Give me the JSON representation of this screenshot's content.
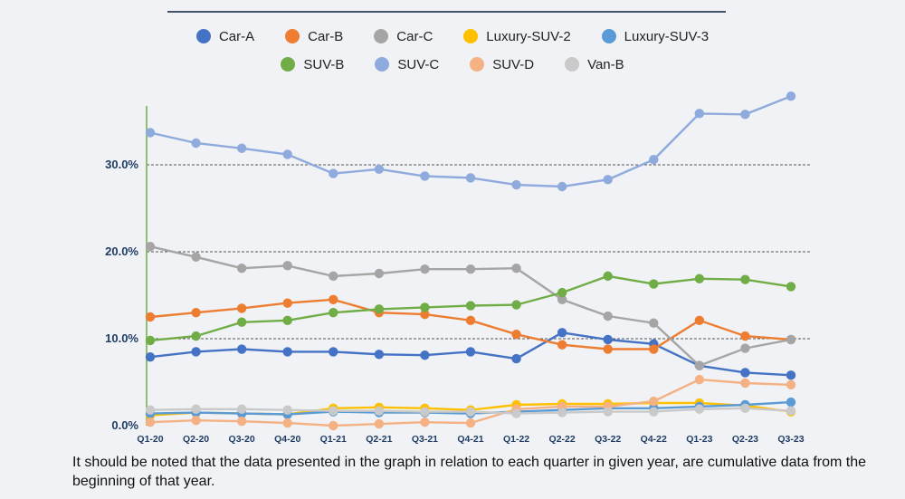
{
  "chart_data": {
    "type": "line",
    "categories": [
      "Q1-20",
      "Q2-20",
      "Q3-20",
      "Q4-20",
      "Q1-21",
      "Q2-21",
      "Q3-21",
      "Q4-21",
      "Q1-22",
      "Q2-22",
      "Q3-22",
      "Q4-22",
      "Q1-23",
      "Q2-23",
      "Q3-23"
    ],
    "y_ticks": [
      "0.0%",
      "10.0%",
      "20.0%",
      "30.0%"
    ],
    "ylim": [
      0,
      37
    ],
    "grid": "horizontal dashed",
    "legend_position": "top",
    "series": [
      {
        "name": "Car-A",
        "color": "#4472c4",
        "values": [
          7.9,
          8.5,
          8.8,
          8.5,
          8.5,
          8.2,
          8.1,
          8.5,
          7.7,
          10.7,
          9.9,
          9.4,
          6.9,
          6.1,
          5.8
        ]
      },
      {
        "name": "Car-B",
        "color": "#ed7d31",
        "values": [
          12.5,
          13.0,
          13.5,
          14.1,
          14.5,
          13.0,
          12.8,
          12.1,
          10.5,
          9.3,
          8.8,
          8.8,
          12.1,
          10.3,
          9.9
        ]
      },
      {
        "name": "Car-C",
        "color": "#a5a5a5",
        "values": [
          20.6,
          19.4,
          18.1,
          18.4,
          17.2,
          17.5,
          18.0,
          18.0,
          18.1,
          14.5,
          12.6,
          11.8,
          6.9,
          8.9,
          9.9
        ]
      },
      {
        "name": "Luxury-SUV-2",
        "color": "#ffc000",
        "values": [
          1.2,
          1.5,
          1.4,
          1.3,
          2.0,
          2.1,
          2.0,
          1.8,
          2.4,
          2.5,
          2.5,
          2.6,
          2.6,
          2.3,
          1.6
        ]
      },
      {
        "name": "Luxury-SUV-3",
        "color": "#5b9bd5",
        "values": [
          1.4,
          1.5,
          1.4,
          1.3,
          1.6,
          1.5,
          1.5,
          1.4,
          1.6,
          1.8,
          2.0,
          2.0,
          2.2,
          2.4,
          2.7
        ]
      },
      {
        "name": "SUV-B",
        "color": "#70ad47",
        "values": [
          9.8,
          10.3,
          11.9,
          12.1,
          13.0,
          13.4,
          13.6,
          13.8,
          13.9,
          15.3,
          17.2,
          16.3,
          16.9,
          16.8,
          16.0
        ]
      },
      {
        "name": "SUV-C",
        "color": "#8faadc",
        "values": [
          33.7,
          32.5,
          31.9,
          31.2,
          29.0,
          29.5,
          28.7,
          28.5,
          27.7,
          27.5,
          28.3,
          30.6,
          35.9,
          35.8,
          37.9
        ]
      },
      {
        "name": "SUV-D",
        "color": "#f4b183",
        "values": [
          0.4,
          0.6,
          0.5,
          0.3,
          0.0,
          0.2,
          0.4,
          0.3,
          1.9,
          2.2,
          2.2,
          2.8,
          5.3,
          4.9,
          4.7
        ]
      },
      {
        "name": "Van-B",
        "color": "#c9c9c9",
        "values": [
          1.8,
          1.9,
          1.9,
          1.8,
          1.7,
          1.7,
          1.6,
          1.6,
          1.4,
          1.5,
          1.6,
          1.6,
          1.9,
          2.0,
          1.7
        ]
      }
    ]
  },
  "footnote": "It should be noted that the data presented in the graph in relation to each quarter in given year, are cumulative data from the beginning of that year."
}
